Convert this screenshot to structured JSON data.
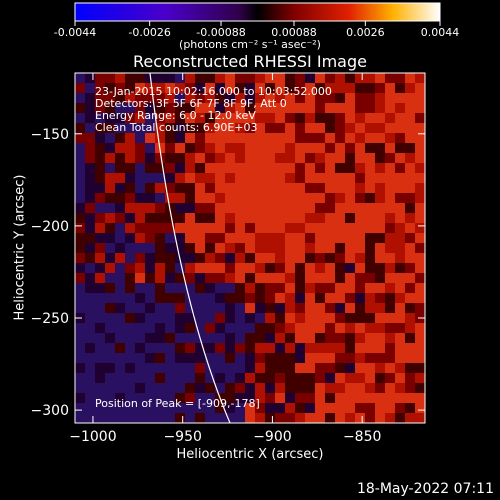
{
  "colorbar": {
    "ticks": [
      "-0.0044",
      "-0.0026",
      "-0.00088",
      "0.00088",
      "0.0026",
      "0.0044"
    ],
    "unit_label": "(photons cm⁻² s⁻¹ asec⁻²)"
  },
  "chart_data": {
    "type": "heatmap",
    "title": "Reconstructed RHESSI Image",
    "xlabel": "Heliocentric X (arcsec)",
    "ylabel": "Heliocentric Y (arcsec)",
    "xlim": [
      -1010,
      -815
    ],
    "ylim": [
      -307,
      -117
    ],
    "x_ticks": [
      -1000,
      -950,
      -900,
      -850
    ],
    "y_ticks": [
      -150,
      -200,
      -250,
      -300
    ],
    "colorbar_range": [
      -0.0044,
      0.0044
    ],
    "peak": {
      "x": -909,
      "y": -178
    },
    "annotations": [
      "23-Jan-2015 10:02:16.000 to 10:03:52.000",
      "Detectors: 3F 5F 6F 7F 8F 9F, Att 0",
      "Energy Range: 6.0 - 12.0 keV",
      "Clean    Total counts: 6.90E+03"
    ],
    "peak_label": "Position of Peak = [-909,-178]"
  },
  "footer": {
    "date": "18-May-2022 07:11"
  }
}
